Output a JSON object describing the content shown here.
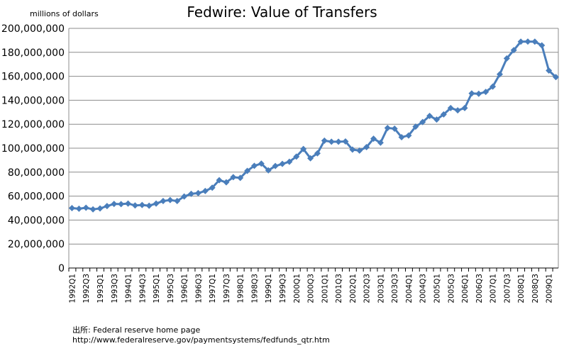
{
  "chart_data": {
    "type": "line",
    "title": "Fedwire: Value of Transfers",
    "ylabel": "millions of dollars",
    "xlabel": "",
    "ylim": [
      0,
      200000000
    ],
    "y_ticks": [
      "0",
      "20,000,000",
      "40,000,000",
      "60,000,000",
      "80,000,000",
      "100,000,000",
      "120,000,000",
      "140,000,000",
      "160,000,000",
      "180,000,000",
      "200,000,000"
    ],
    "x_tick_labels": [
      "1992Q1",
      "1992Q3",
      "1993Q1",
      "1993Q3",
      "1994Q1",
      "1994Q3",
      "1995Q1",
      "1995Q3",
      "1996Q1",
      "1996Q3",
      "1997Q1",
      "1997Q3",
      "1998Q1",
      "1998Q3",
      "1999Q1",
      "1999Q3",
      "2000Q1",
      "2000Q3",
      "2001Q1",
      "2001Q3",
      "2002Q1",
      "2002Q3",
      "2003Q1",
      "2003Q3",
      "2004Q1",
      "2004Q3",
      "2005Q1",
      "2005Q3",
      "2006Q1",
      "2006Q3",
      "2007Q1",
      "2007Q3",
      "2008Q1",
      "2008Q3",
      "2009Q1"
    ],
    "grid": "horizontal",
    "marker": "diamond",
    "line_color": "#4a7ebb",
    "series": [
      {
        "values": [
          50000000,
          49500000,
          50300000,
          49000000,
          49700000,
          51700000,
          53500000,
          53300000,
          53800000,
          52200000,
          52600000,
          52000000,
          53800000,
          55900000,
          56700000,
          55900000,
          59700000,
          61900000,
          62500000,
          64300000,
          67000000,
          73300000,
          71500000,
          75800000,
          75200000,
          81100000,
          85300000,
          87100000,
          81500000,
          85100000,
          86900000,
          88700000,
          93000000,
          99300000,
          91600000,
          95700000,
          106300000,
          105400000,
          105400000,
          105600000,
          98800000,
          98000000,
          100900000,
          107900000,
          104600000,
          116900000,
          116300000,
          109200000,
          110600000,
          118000000,
          121800000,
          126900000,
          123900000,
          128200000,
          133500000,
          131600000,
          133500000,
          145700000,
          145400000,
          147000000,
          151400000,
          161700000,
          174900000,
          181800000,
          188900000,
          189000000,
          188900000,
          185800000,
          164800000,
          159300000
        ]
      }
    ]
  },
  "source": {
    "line1": "出所: Federal reserve home page",
    "line2": "http://www.federalreserve.gov/paymentsystems/fedfunds_qtr.htm"
  }
}
